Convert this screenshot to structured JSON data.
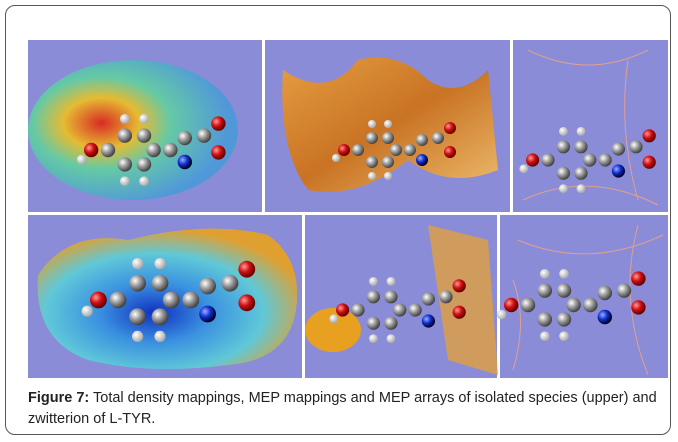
{
  "caption": {
    "label": "Figure 7:",
    "text": "Total density mappings, MEP mappings and MEP arrays of isolated species (upper) and zwitterion of L-TYR."
  }
}
